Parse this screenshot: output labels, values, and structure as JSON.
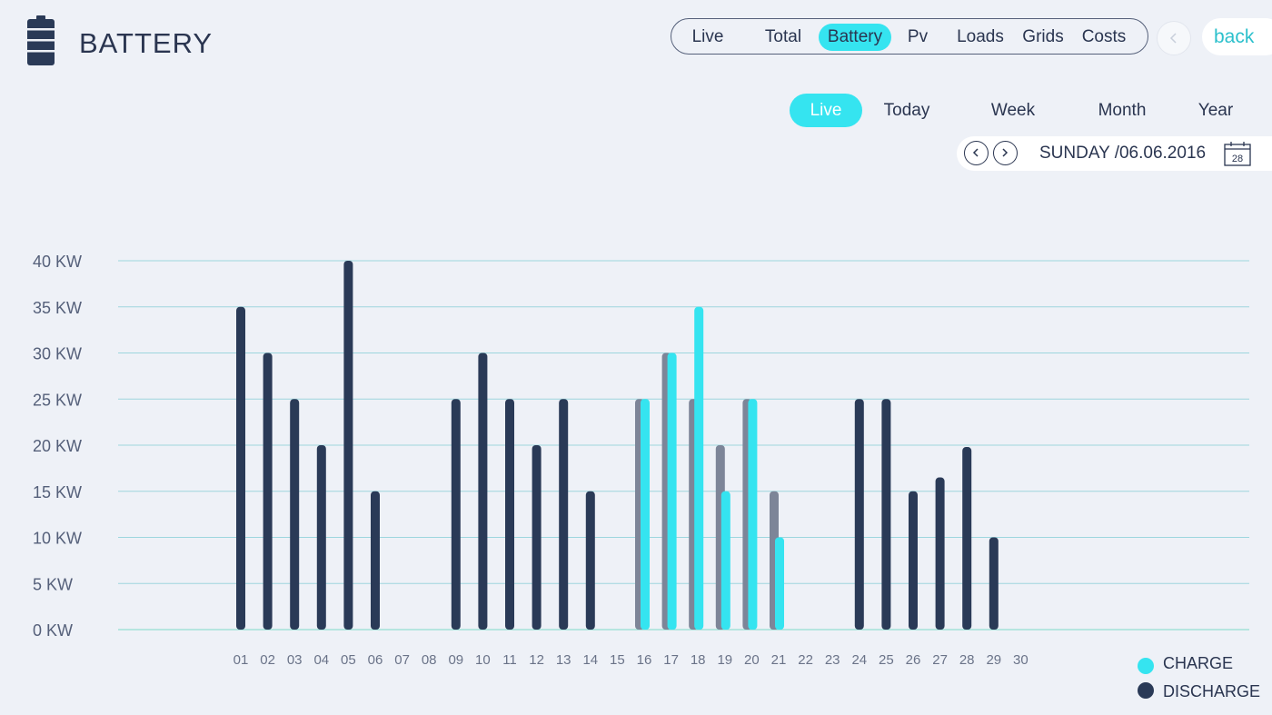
{
  "header": {
    "title": "BATTERY",
    "icon": "battery-icon",
    "tabs": [
      {
        "label": "Live",
        "active": false
      },
      {
        "label": "Total",
        "active": false
      },
      {
        "label": "Battery",
        "active": true
      },
      {
        "label": "Pv",
        "active": false
      },
      {
        "label": "Loads",
        "active": false
      },
      {
        "label": "Grids",
        "active": false
      },
      {
        "label": "Costs",
        "active": false
      }
    ],
    "back_label": "back"
  },
  "period_tabs": [
    {
      "label": "Live",
      "active": true
    },
    {
      "label": "Today",
      "active": false
    },
    {
      "label": "Week",
      "active": false
    },
    {
      "label": "Month",
      "active": false
    },
    {
      "label": "Year",
      "active": false
    }
  ],
  "date": {
    "text": "SUNDAY /06.06.2016",
    "calendar_day": "28"
  },
  "colors": {
    "charge": "#35e4f0",
    "discharge": "#2a3a57",
    "discharge_muted": "#7d8598",
    "grid": "#9dd6de",
    "accent": "#35e4f0"
  },
  "chart_data": {
    "type": "bar",
    "title": "",
    "xlabel": "",
    "ylabel": "",
    "ylim": [
      0,
      40
    ],
    "yticks": [
      "0 KW",
      "5 KW",
      "10 KW",
      "15 KW",
      "20 KW",
      "25 KW",
      "30 KW",
      "35 KW",
      "40 KW"
    ],
    "grid": true,
    "legend_position": "bottom-right",
    "categories": [
      "01",
      "02",
      "03",
      "04",
      "05",
      "06",
      "07",
      "08",
      "09",
      "10",
      "11",
      "12",
      "13",
      "14",
      "15",
      "16",
      "17",
      "18",
      "19",
      "20",
      "21",
      "22",
      "23",
      "24",
      "25",
      "26",
      "27",
      "28",
      "29",
      "30"
    ],
    "series": [
      {
        "name": "CHARGE",
        "values": [
          0,
          0,
          0,
          0,
          0,
          0,
          0,
          0,
          0,
          0,
          0,
          0,
          0,
          0,
          0,
          25,
          30,
          35,
          15,
          25,
          10,
          0,
          0,
          0,
          0,
          0,
          0,
          0,
          0,
          0
        ]
      },
      {
        "name": "DISCHARGE",
        "values": [
          35,
          30,
          25,
          20,
          40,
          15,
          0,
          0,
          25,
          30,
          25,
          20,
          25,
          15,
          0,
          25,
          30,
          25,
          20,
          25,
          15,
          0,
          0,
          25,
          25,
          15,
          16.5,
          19.8,
          10,
          0
        ]
      }
    ]
  }
}
